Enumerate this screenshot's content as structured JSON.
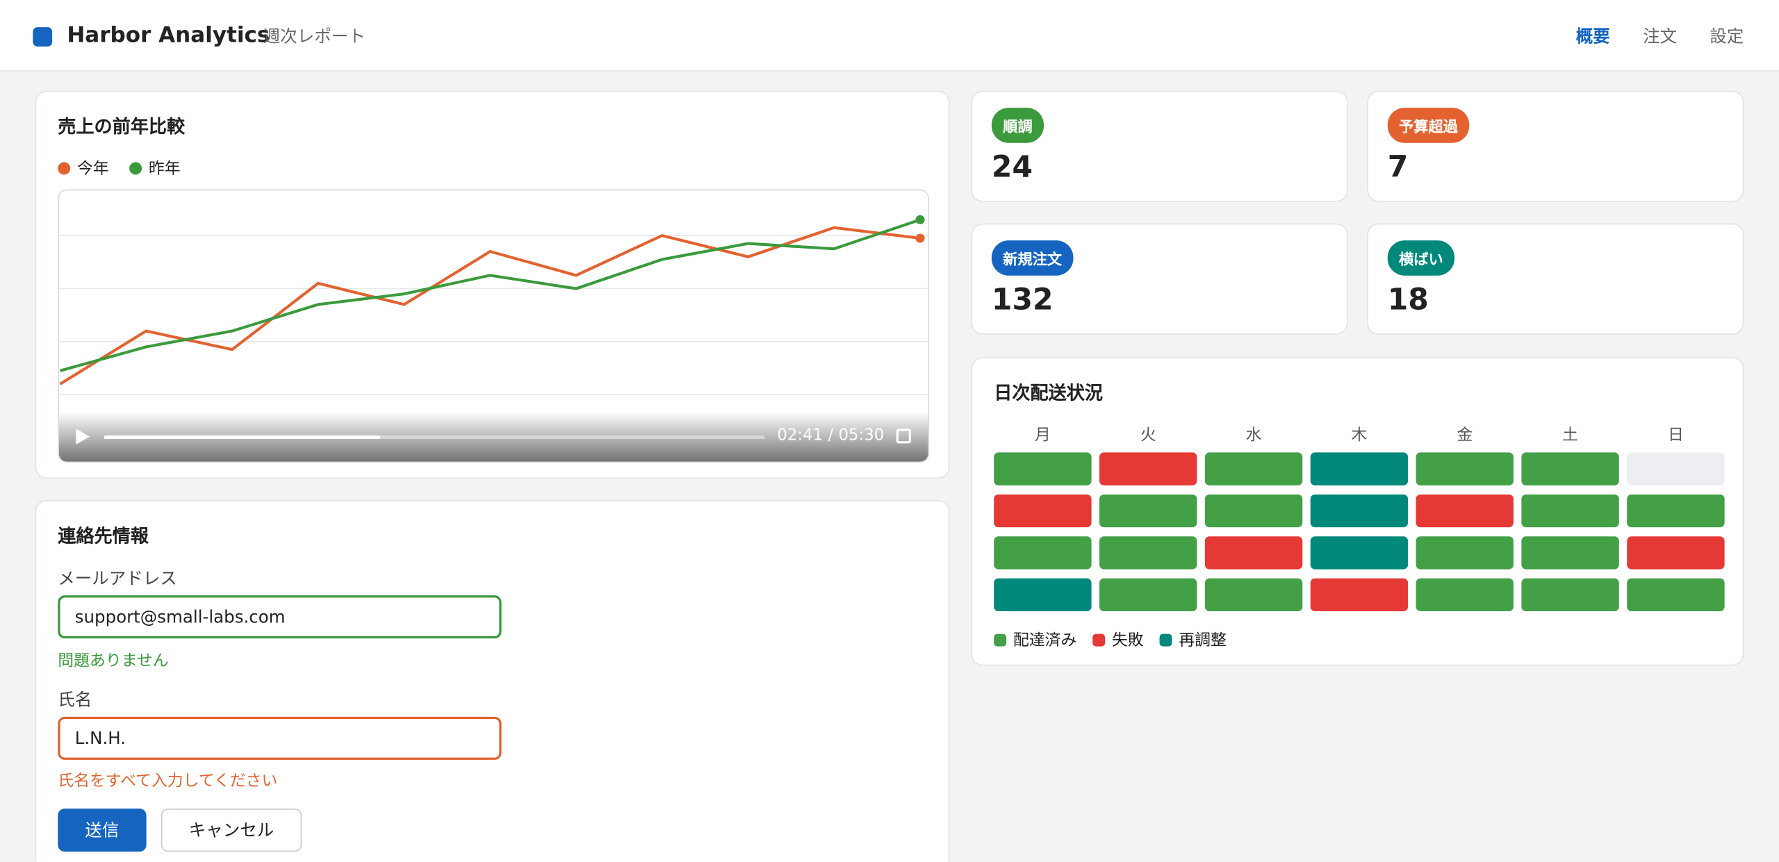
{
  "header": {
    "title": "Harbor Analytics",
    "subtitle": "週次レポート",
    "nav": [
      "概要",
      "注文",
      "設定"
    ]
  },
  "chart_card": {
    "title": "売上の前年比較",
    "video_time": "02:41 / 05:30",
    "chart_data": {
      "type": "line",
      "ylim": [
        0,
        100
      ],
      "yticks": [
        20,
        40,
        60,
        80
      ],
      "grid": true,
      "series": [
        {
          "name": "今年",
          "color": "#e3622f",
          "values": [
            24,
            44,
            37,
            62,
            54,
            74,
            65,
            80,
            72,
            83,
            79
          ]
        },
        {
          "name": "昨年",
          "color": "#3a9a3c",
          "values": [
            29,
            38,
            44,
            54,
            58,
            65,
            60,
            71,
            77,
            75,
            86
          ]
        }
      ]
    }
  },
  "stats": [
    {
      "label": "順調",
      "value": 24,
      "color": "#3a9a3c"
    },
    {
      "label": "予算超過",
      "value": 7,
      "color": "#e3622f"
    },
    {
      "label": "新規注文",
      "value": 132,
      "color": "#1565c0"
    },
    {
      "label": "横ばい",
      "value": 18,
      "color": "#00897b"
    }
  ],
  "delivery": {
    "title": "日次配送状況",
    "days": [
      "月",
      "火",
      "水",
      "木",
      "金",
      "土",
      "日"
    ],
    "legend": [
      {
        "name": "配達済み",
        "color": "#43a047"
      },
      {
        "name": "失敗",
        "color": "#e53935"
      },
      {
        "name": "再調整",
        "color": "#00897b"
      }
    ],
    "rows": [
      [
        0,
        1,
        0,
        2,
        0,
        0,
        null
      ],
      [
        1,
        0,
        0,
        2,
        1,
        0,
        0
      ],
      [
        0,
        0,
        1,
        2,
        0,
        0,
        1
      ],
      [
        2,
        0,
        0,
        1,
        0,
        0,
        0
      ]
    ]
  },
  "form": {
    "title": "連絡先情報",
    "fields": [
      {
        "label": "メールアドレス",
        "value": "support@small-labs.com",
        "message": "問題ありません",
        "color": "#3a9a3c"
      },
      {
        "label": "氏名",
        "value": "L.N.H.",
        "message": "氏名をすべて入力してください",
        "color": "#e3622f"
      }
    ],
    "submit": "送信",
    "cancel": "キャンセル"
  }
}
